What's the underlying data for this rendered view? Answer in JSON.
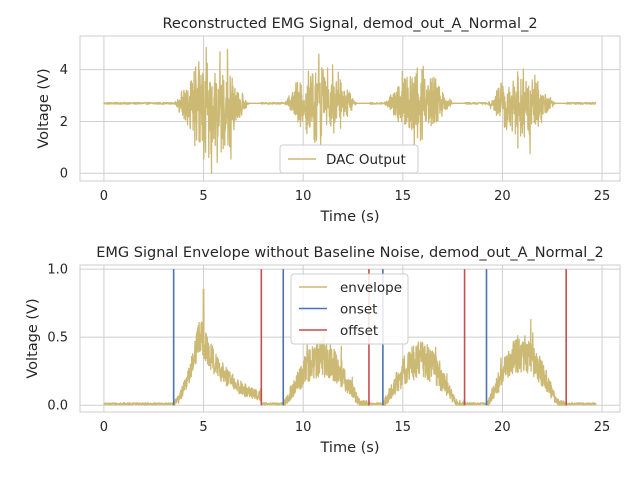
{
  "chart_data": [
    {
      "type": "line",
      "title": "Reconstructed EMG Signal, demod_out_A_Normal_2",
      "xlabel": "Time (s)",
      "ylabel": "Voltage (V)",
      "xlim": [
        -1.2,
        25.9
      ],
      "ylim": [
        -0.3,
        5.3
      ],
      "xticks": [
        0,
        5,
        10,
        15,
        20,
        25
      ],
      "yticks": [
        0,
        2,
        4
      ],
      "grid": true,
      "legend_position": "lower center",
      "series": [
        {
          "name": "DAC Output",
          "color": "#ccb974",
          "baseline": 2.7,
          "x_range": [
            0,
            24.7
          ],
          "bursts": [
            {
              "start": 3.5,
              "end": 7.9,
              "peak": 4.95,
              "min": 0.0
            },
            {
              "start": 9.0,
              "end": 13.3,
              "peak": 4.6,
              "min": 1.0
            },
            {
              "start": 14.0,
              "end": 18.1,
              "peak": 4.45,
              "min": 0.95
            },
            {
              "start": 19.2,
              "end": 23.2,
              "peak": 4.35,
              "min": 0.75
            }
          ]
        }
      ]
    },
    {
      "type": "line",
      "title": "EMG Signal Envelope without Baseline Noise, demod_out_A_Normal_2",
      "xlabel": "Time (s)",
      "ylabel": "Voltage (V)",
      "xlim": [
        -1.2,
        25.9
      ],
      "ylim": [
        -0.05,
        1.03
      ],
      "xticks": [
        0,
        5,
        10,
        15,
        20,
        25
      ],
      "yticks": [
        0.0,
        0.5,
        1.0
      ],
      "grid": true,
      "legend_position": "upper center",
      "series": [
        {
          "name": "envelope",
          "color": "#ccb974",
          "baseline": 0.01,
          "x_range": [
            0,
            24.7
          ],
          "bursts": [
            {
              "start": 3.5,
              "end": 7.9,
              "peak": 0.85
            },
            {
              "start": 9.0,
              "end": 13.3,
              "peak": 0.55
            },
            {
              "start": 14.0,
              "end": 18.1,
              "peak": 0.53
            },
            {
              "start": 19.2,
              "end": 23.2,
              "peak": 0.6
            }
          ]
        },
        {
          "name": "onset",
          "color": "#4c72b0",
          "x": [
            3.5,
            9.0,
            14.0,
            19.2
          ],
          "y_range": [
            0.0,
            1.0
          ]
        },
        {
          "name": "offset",
          "color": "#c44e52",
          "x": [
            7.9,
            13.3,
            18.1,
            23.2
          ],
          "y_range": [
            0.0,
            1.0
          ]
        }
      ]
    }
  ]
}
